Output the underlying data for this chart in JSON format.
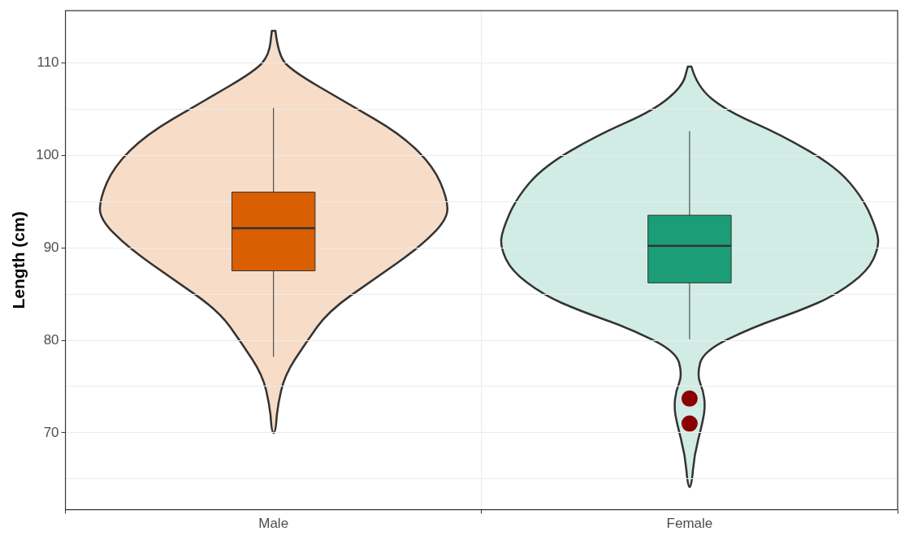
{
  "chart_data": {
    "type": "box",
    "ylabel": "Length (cm)",
    "categories": [
      "Male",
      "Female"
    ],
    "boxes": [
      {
        "low": 78.2,
        "q1": 87.5,
        "median": 92.1,
        "q3": 96.0,
        "high": 105.1
      },
      {
        "low": 80.1,
        "q1": 86.2,
        "median": 90.2,
        "q3": 93.5,
        "high": 102.6
      }
    ],
    "colors": [
      "#d95f02",
      "#1b9e77"
    ],
    "series": [
      {
        "type": "scatter",
        "x": [
          "Female",
          "Female"
        ],
        "values": [
          73.7,
          71.0
        ],
        "color": "#8b0000"
      }
    ],
    "ylim": [
      61.7,
      115.6
    ],
    "yticks": [
      {
        "value": 65,
        "label": null
      },
      70,
      {
        "value": 75,
        "label": null
      },
      80,
      {
        "value": 85,
        "label": null
      },
      90,
      {
        "value": 95,
        "label": null
      },
      100,
      {
        "value": 105,
        "label": null
      },
      110
    ],
    "grid": true,
    "legend": false
  }
}
